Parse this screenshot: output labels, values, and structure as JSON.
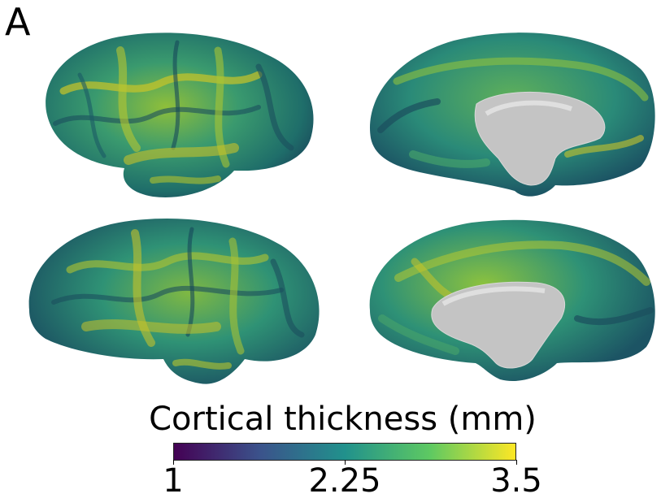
{
  "panel_label": "A",
  "colorbar": {
    "title": "Cortical thickness (mm)",
    "min": 1,
    "max": 3.5,
    "tick_values": [
      1,
      2.25,
      3.5
    ],
    "tick_labels": [
      "1",
      "2.25",
      "3.5"
    ],
    "colormap": "viridis",
    "colors": [
      "#440154",
      "#3b528b",
      "#21918c",
      "#5ec962",
      "#fde725"
    ]
  },
  "views": [
    {
      "name": "lateral-view-top",
      "description_colors": [
        "#1f7a6f",
        "#b5c832"
      ]
    },
    {
      "name": "medial-view-top",
      "description_colors": [
        "#1f7a6f",
        "#c0c0c0"
      ]
    },
    {
      "name": "lateral-view-bottom",
      "description_colors": [
        "#1f7a6f",
        "#b5c832"
      ]
    },
    {
      "name": "medial-view-bottom",
      "description_colors": [
        "#1f7a6f",
        "#c0c0c0"
      ]
    }
  ]
}
